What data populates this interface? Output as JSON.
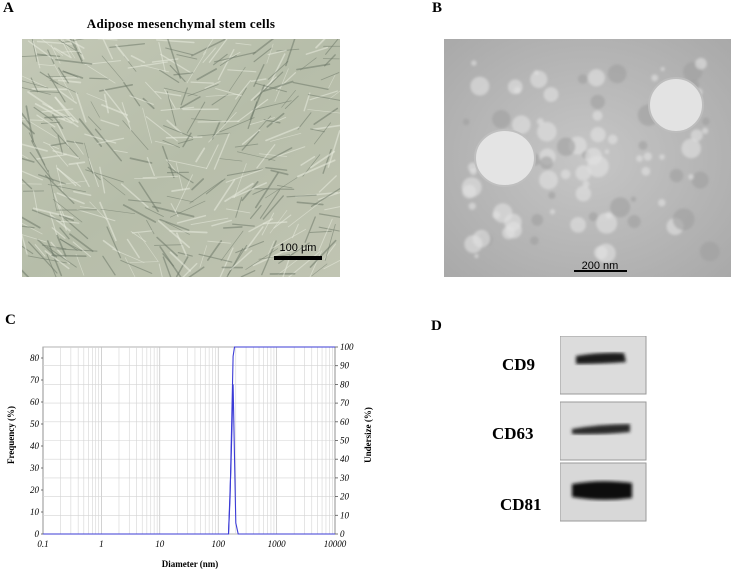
{
  "panels": {
    "a": {
      "letter": "A",
      "title": "Adipose mesenchymal stem cells",
      "scale_bar": "100 μm"
    },
    "b": {
      "letter": "B",
      "scale_bar": "200 nm"
    },
    "c": {
      "letter": "C"
    },
    "d": {
      "letter": "D",
      "blots": [
        "CD9",
        "CD63",
        "CD81"
      ]
    }
  },
  "chart_data": {
    "type": "line",
    "xlabel": "Diameter (nm)",
    "ylabel_left": "Frequency (%)",
    "ylabel_right": "Undersize (%)",
    "x_scale": "log",
    "xlim": [
      0.1,
      10000
    ],
    "ylim_left": [
      0,
      85
    ],
    "ylim_right": [
      0,
      100
    ],
    "x_ticks": [
      "0.1",
      "1",
      "10",
      "100",
      "1000",
      "10000"
    ],
    "y_ticks_left": [
      "0",
      "10",
      "20",
      "30",
      "40",
      "50",
      "60",
      "70",
      "80"
    ],
    "y_ticks_right": [
      "0",
      "10",
      "20",
      "30",
      "40",
      "50",
      "60",
      "70",
      "80",
      "90",
      "100"
    ],
    "grid": true,
    "series": [
      {
        "axis": "left",
        "color": "#3b3bd6",
        "x": [
          0.1,
          150,
          165,
          180,
          200,
          220,
          10000
        ],
        "y": [
          0,
          0,
          30,
          68,
          5,
          0,
          0
        ]
      },
      {
        "axis": "right",
        "color": "#3b3bd6",
        "x": [
          0.1,
          150,
          160,
          170,
          180,
          190,
          10000
        ],
        "y": [
          0,
          0,
          20,
          60,
          95,
          100,
          100
        ]
      }
    ]
  }
}
